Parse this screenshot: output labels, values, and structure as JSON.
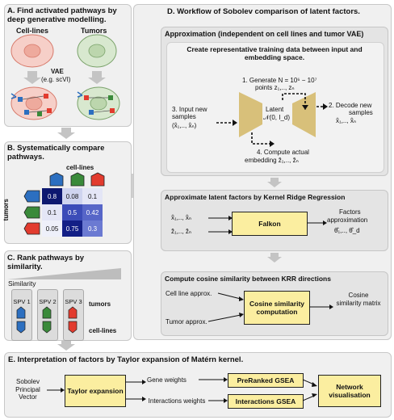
{
  "panel_a": {
    "title": "A. Find activated pathways by deep generative modelling.",
    "cell_lines": "Cell-lines",
    "tumors": "Tumors",
    "vae": "VAE",
    "vae_example": "(e.g. scVI)"
  },
  "panel_b": {
    "title": "B. Systematically compare pathways.",
    "col_label": "cell-lines",
    "row_label": "tumors",
    "matrix": [
      [
        "0.8",
        "0.08",
        "0.1"
      ],
      [
        "0.1",
        "0.5",
        "0.42"
      ],
      [
        "0.05",
        "0.75",
        "0.3"
      ]
    ],
    "colors": [
      "#0d1870",
      "#cfd4ef",
      "#e4e6f6",
      "#e4e6f6",
      "#3c4cb8",
      "#5766c8",
      "#eef0fa",
      "#131f86",
      "#6b7ad2"
    ]
  },
  "panel_c": {
    "title": "C. Rank pathways by similarity.",
    "similarity": "Similarity",
    "spv": [
      "SPV 1",
      "SPV 2",
      "SPV 3"
    ],
    "tumors": "tumors",
    "cell_lines": "cell-lines"
  },
  "panel_d": {
    "title": "D. Workflow of Sobolev comparison of latent factors.",
    "approx_title": "Approximation (independent on cell lines and tumor VAE)",
    "repr_title": "Create representative training data between input and embedding space.",
    "step1": "1. Generate N = 10⁶ − 10⁷",
    "step1b": "points z₁,.., zₙ",
    "latent": "Latent",
    "latent_dist": "𝒩(0, I_d)",
    "step2": "2. Decode new",
    "step2b": "samples",
    "step2c": "x̂₁,.., x̂ₙ",
    "step3": "3. Input new",
    "step3b": "samples",
    "step3c": "(x̂₁,.., x̂ₙ)",
    "step4": "4. Compute actual",
    "step4b": "embedding ẑ₁,.., ẑₙ",
    "krr_title": "Approximate latent factors by Kernel Ridge Regression",
    "krr_in1": "x̂₁,.., x̂ₙ",
    "krr_in2": "ẑ₁,.., ẑₙ",
    "falkon": "Falkon",
    "factors": "Factors",
    "factors2": "approximation",
    "theta": "θ̂₁,.., θ̂_d",
    "cos_title": "Compute cosine similarity between KRR directions",
    "cell_approx": "Cell line approx.",
    "tumor_approx": "Tumor approx.",
    "cos_box": "Cosine similarity computation",
    "cos_out": "Cosine similarity matrix"
  },
  "panel_e": {
    "title": "E. Interpretation of factors by Taylor expansion of Matérn kernel.",
    "sobolev": "Sobolev Principal Vector",
    "taylor": "Taylor expansion",
    "gene_weights": "Gene weights",
    "inter_weights": "Interactions weights",
    "preranked": "PreRanked GSEA",
    "inter_gsea": "Interactions GSEA",
    "network": "Network visualisation"
  }
}
